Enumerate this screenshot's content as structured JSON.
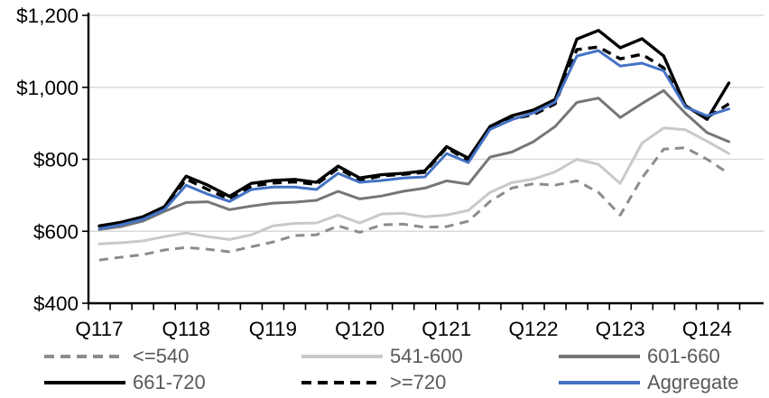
{
  "chart_data": {
    "type": "line",
    "title": "",
    "x_tick_labels": [
      "Q117",
      "Q118",
      "Q119",
      "Q120",
      "Q121",
      "Q122",
      "Q123",
      "Q124"
    ],
    "points_per_label": 4,
    "n_points": 30,
    "y_tick_labels": [
      "$400",
      "$600",
      "$800",
      "$1,000",
      "$1,200"
    ],
    "y_tick_values": [
      400,
      600,
      800,
      1000,
      1200
    ],
    "ylim": [
      400,
      1200
    ],
    "grid": "horizontal",
    "legend_position": "bottom",
    "axis_color": "#000000",
    "gridline_color": "#d9d9d9",
    "label_color": "#000000",
    "legend_text_color": "#595959",
    "series": [
      {
        "key": "le-540",
        "name": "<=540",
        "color": "#8C8C8C",
        "dash": "dashed",
        "values": [
          520,
          528,
          535,
          548,
          555,
          550,
          543,
          557,
          570,
          588,
          590,
          615,
          597,
          618,
          620,
          611,
          613,
          628,
          683,
          720,
          732,
          728,
          740,
          708,
          645,
          748,
          828,
          832,
          800,
          760
        ]
      },
      {
        "key": "541-600",
        "name": "541-600",
        "color": "#C9C9C9",
        "dash": "solid",
        "values": [
          565,
          568,
          573,
          585,
          595,
          585,
          577,
          590,
          615,
          622,
          623,
          645,
          623,
          648,
          650,
          640,
          645,
          658,
          708,
          735,
          745,
          765,
          800,
          786,
          733,
          845,
          887,
          882,
          850,
          816
        ]
      },
      {
        "key": "601-660",
        "name": "601-660",
        "color": "#767676",
        "dash": "solid",
        "values": [
          605,
          613,
          628,
          655,
          680,
          682,
          660,
          670,
          678,
          681,
          686,
          711,
          690,
          698,
          711,
          720,
          740,
          731,
          806,
          820,
          849,
          891,
          958,
          970,
          916,
          955,
          991,
          928,
          874,
          849
        ]
      },
      {
        "key": "661-720",
        "name": "661-720",
        "color": "#000000",
        "dash": "solid",
        "values": [
          615,
          625,
          640,
          668,
          753,
          728,
          697,
          733,
          741,
          744,
          736,
          781,
          748,
          757,
          761,
          768,
          835,
          803,
          891,
          921,
          937,
          966,
          1134,
          1158,
          1110,
          1135,
          1087,
          949,
          911,
          1012
        ]
      },
      {
        "key": "ge-720",
        "name": ">=720",
        "color": "#000000",
        "dash": "dashed",
        "values": [
          612,
          622,
          637,
          663,
          745,
          716,
          689,
          725,
          734,
          737,
          730,
          775,
          741,
          754,
          758,
          764,
          832,
          795,
          885,
          912,
          924,
          954,
          1105,
          1112,
          1079,
          1092,
          1054,
          948,
          916,
          954
        ]
      },
      {
        "key": "aggregate",
        "name": "Aggregate",
        "color": "#4472C4",
        "dash": "solid",
        "values": [
          607,
          618,
          633,
          660,
          728,
          703,
          683,
          716,
          723,
          723,
          716,
          761,
          736,
          741,
          748,
          751,
          816,
          791,
          883,
          910,
          929,
          959,
          1087,
          1102,
          1059,
          1067,
          1046,
          945,
          921,
          940
        ]
      }
    ]
  }
}
